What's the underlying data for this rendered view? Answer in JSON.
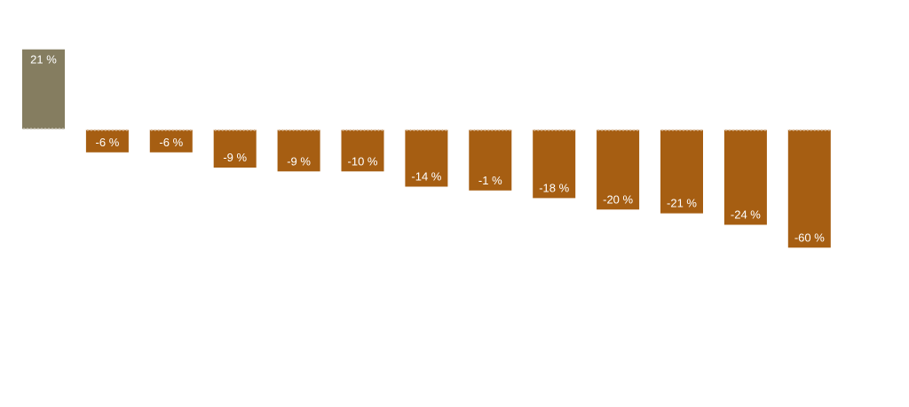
{
  "chart_data": {
    "type": "bar",
    "title": "",
    "xlabel": "",
    "ylabel": "",
    "categories": [
      "",
      "",
      "",
      "",
      "",
      "",
      "",
      "",
      "",
      "",
      "",
      "",
      ""
    ],
    "values": [
      21,
      -6,
      -6,
      -9,
      -9,
      -10,
      -14,
      -1,
      -18,
      -20,
      -21,
      -24,
      -60
    ],
    "value_labels": [
      "21 %",
      "-6 %",
      "-6 %",
      "-9 %",
      "-9 %",
      "-10 %",
      "-14 %",
      "-1 %",
      "-18 %",
      "-20 %",
      "-21 %",
      "-24 %",
      "-60 %"
    ],
    "bar_heights_shown": [
      21,
      -6,
      -6,
      -10,
      -11,
      -11,
      -15,
      -16,
      -18,
      -21,
      -22,
      -25,
      -31
    ],
    "colors": {
      "positive": "#857d60",
      "negative": "#a65e12"
    },
    "grid": false,
    "legend": "none"
  }
}
